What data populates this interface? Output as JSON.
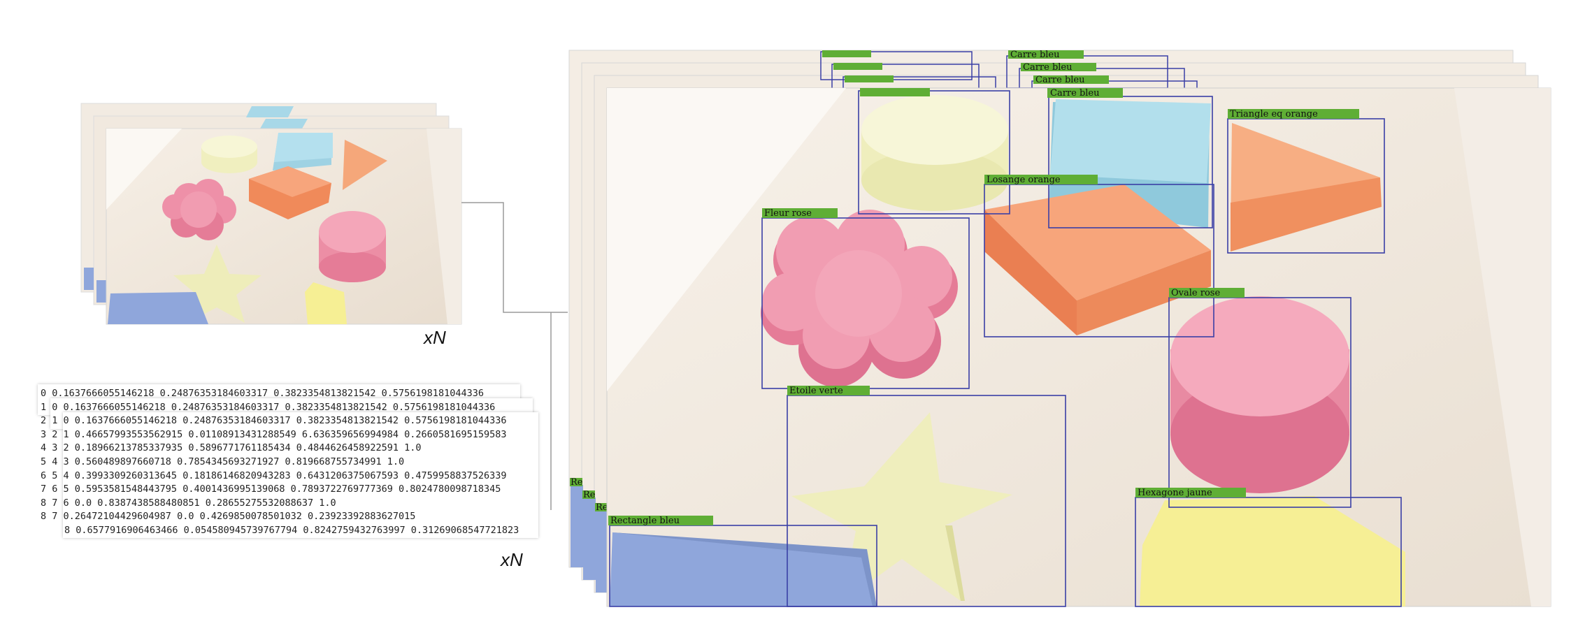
{
  "multiplier_label": "xN",
  "annotations": [
    {
      "label": "Carre bleu"
    },
    {
      "label": "Triangle eq orange"
    },
    {
      "label": "Losange orange"
    },
    {
      "label": "Fleur rose"
    },
    {
      "label": "Ovale rose"
    },
    {
      "label": "Etoile verte"
    },
    {
      "label": "Hexagone jaune"
    },
    {
      "label": "Rectangle bleu"
    }
  ],
  "stack_labels": [
    "Carre bleu",
    "Carre bleu",
    "Carre bleu"
  ],
  "stack_left_labels": [
    "Re",
    "Re",
    "Re"
  ],
  "label_lines": [
    "0 0.1637666055146218 0.24876353184603317 0.3823354813821542 0.5756198181044336",
    "1 0 0.1637666055146218 0.24876353184603317 0.3823354813821542 0.5756198181044336",
    "2 1 0 0.1637666055146218 0.24876353184603317 0.3823354813821542 0.5756198181044336",
    "3 2 1 0.46657993553562915 0.01108913431288549 6.636359656994984 0.2660581695159583",
    "4 3 2 0.18966213785337935 0.5896771761185434 0.4844626458922591 1.0",
    "5 4 3 0.560489897660718 0.7854345693271927 0.819668755734991 1.0",
    "6 5 4 0.3993309260313645 0.18186146820943283 0.6431206375067593 0.4759958837526339",
    "7 6 5 0.5953581548443795 0.4001436995139068 0.7893722769777369 0.8024780098718345",
    "8 7 6 0.0 0.8387438588480851 0.28655275532088637 1.0",
    "8 7 0.26472104429604987 0.0 0.4269850078501032 0.23923392883627015",
    "8 0.6577916906463466 0.054580945739767794 0.8242759432763997 0.31269068547721823"
  ],
  "colors": {
    "bbox": "#3a3fa6",
    "label_bg": "#5fae35",
    "connector": "#9a9a9a",
    "table": "#efe6da"
  }
}
